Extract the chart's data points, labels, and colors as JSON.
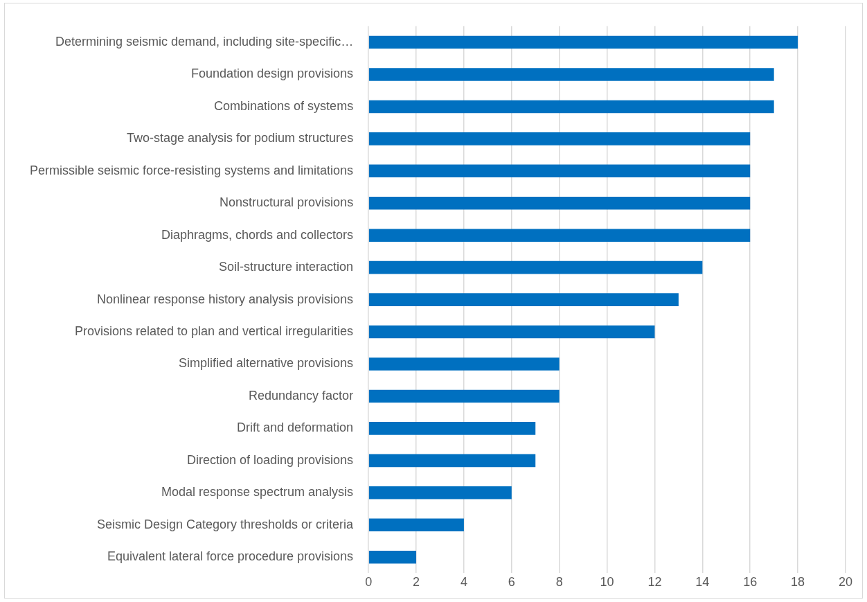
{
  "chart_data": {
    "type": "bar",
    "orientation": "horizontal",
    "categories": [
      "Determining seismic demand, including site-specific…",
      "Foundation design provisions",
      "Combinations of systems",
      "Two-stage analysis for podium structures",
      "Permissible seismic force-resisting systems and limitations",
      "Nonstructural provisions",
      "Diaphragms, chords and collectors",
      "Soil-structure interaction",
      "Nonlinear response history analysis provisions",
      "Provisions related to plan and vertical irregularities",
      "Simplified alternative provisions",
      "Redundancy factor",
      "Drift and deformation",
      "Direction of loading provisions",
      "Modal response spectrum analysis",
      "Seismic Design Category thresholds or criteria",
      "Equivalent lateral force procedure provisions"
    ],
    "values": [
      18,
      17,
      17,
      16,
      16,
      16,
      16,
      14,
      13,
      12,
      8,
      8,
      7,
      7,
      6,
      4,
      2
    ],
    "color": "#0070c0",
    "xlim": [
      0,
      20
    ],
    "xticks": [
      0,
      2,
      4,
      6,
      8,
      10,
      12,
      14,
      16,
      18,
      20
    ],
    "grid": "x",
    "legend": false
  }
}
